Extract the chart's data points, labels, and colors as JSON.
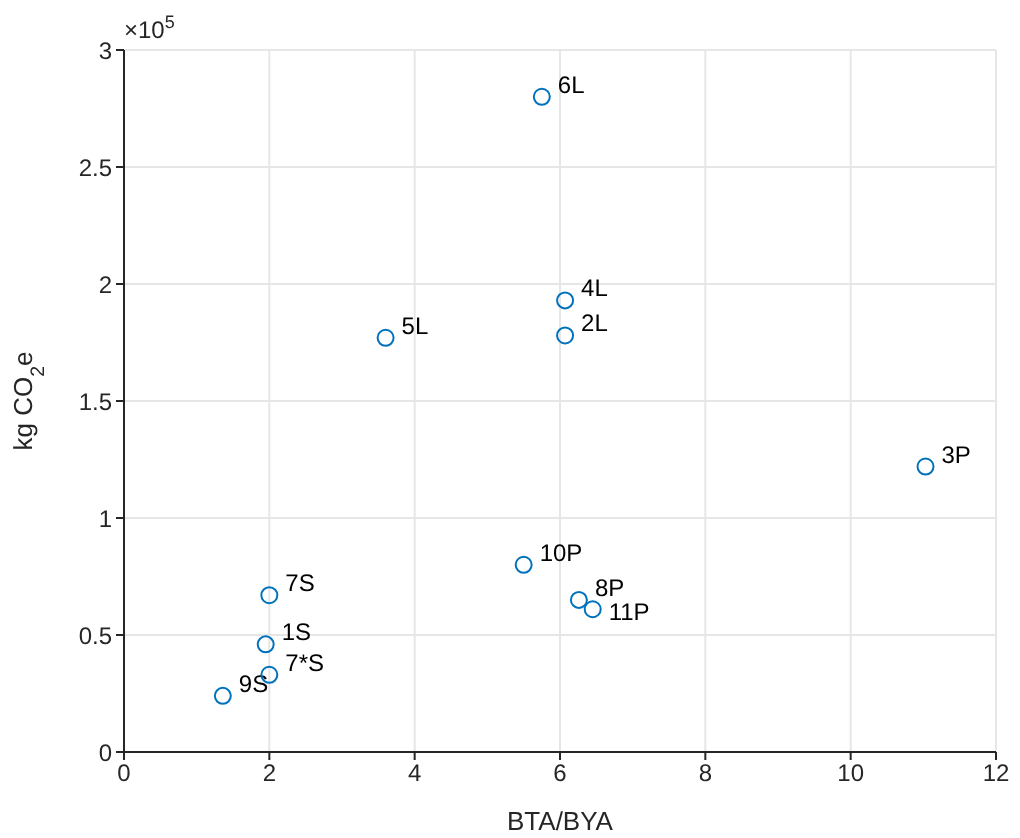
{
  "chart_data": {
    "type": "scatter",
    "xlabel": "BTA/BYA",
    "ylabel": "kg CO$_{2}$e",
    "x": [
      5.75,
      6.07,
      6.07,
      3.6,
      11.03,
      5.5,
      6.26,
      6.45,
      2.0,
      1.95,
      2.0,
      1.36
    ],
    "values": [
      2.8,
      1.93,
      1.78,
      1.77,
      1.22,
      0.8,
      0.65,
      0.61,
      0.67,
      0.46,
      0.33,
      0.24
    ],
    "color": "#0072bd",
    "marker": "circle",
    "xlim": [
      0,
      12
    ],
    "xticks": [
      0,
      2,
      4,
      6,
      8,
      10,
      12
    ],
    "ylim": [
      0,
      3
    ],
    "yticks": [
      0,
      0.5,
      1,
      1.5,
      2,
      2.5,
      3
    ],
    "grid": true,
    "annotations": [
      "×10$^{5}$",
      {
        "text": "6L",
        "x": 5.75,
        "y": 2.8
      },
      {
        "text": "4L",
        "x": 6.07,
        "y": 1.93
      },
      {
        "text": "2L",
        "x": 6.07,
        "y": 1.78
      },
      {
        "text": "5L",
        "x": 3.6,
        "y": 1.77
      },
      {
        "text": "3P",
        "x": 11.03,
        "y": 1.22
      },
      {
        "text": "10P",
        "x": 5.5,
        "y": 0.8
      },
      {
        "text": "8P",
        "x": 6.26,
        "y": 0.65
      },
      {
        "text": "11P",
        "x": 6.45,
        "y": 0.61
      },
      {
        "text": "7S",
        "x": 2.0,
        "y": 0.67
      },
      {
        "text": "1S",
        "x": 1.95,
        "y": 0.46
      },
      {
        "text": "7*S",
        "x": 2.0,
        "y": 0.33
      },
      {
        "text": "9S",
        "x": 1.36,
        "y": 0.24
      }
    ]
  }
}
